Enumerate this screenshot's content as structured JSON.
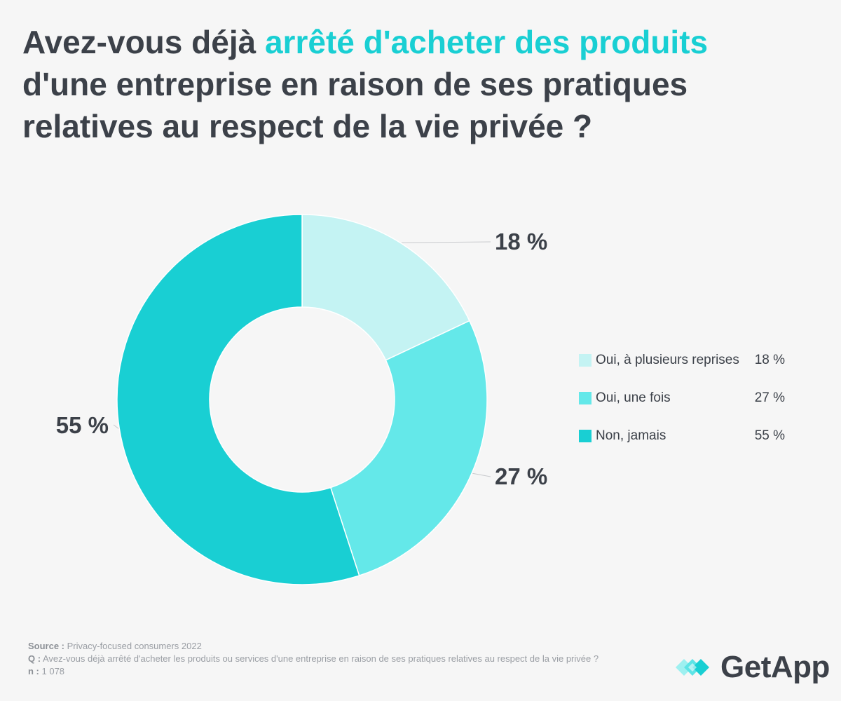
{
  "title": {
    "part1": "Avez-vous déjà ",
    "highlight": "arrêté d'acheter des produits",
    "part2": " d'une entreprise en raison de ses pratiques relatives au respect de la vie privée ?"
  },
  "colors": {
    "accent": "#19cfd3",
    "text": "#3c4149",
    "background": "#f6f6f6"
  },
  "chart_data": {
    "type": "pie",
    "variant": "donut",
    "categories": [
      "Oui, à plusieurs reprises",
      "Oui, une fois",
      "Non, jamais"
    ],
    "values": [
      18,
      27,
      55
    ],
    "unit": "%",
    "data_labels": [
      "18 %",
      "27 %",
      "55 %"
    ],
    "colors": [
      "#c4f3f3",
      "#64e8e9",
      "#19cfd3"
    ],
    "legend_position": "right"
  },
  "legend": [
    {
      "label": "Oui, à plusieurs reprises",
      "value": "18 %",
      "color": "#c4f3f3"
    },
    {
      "label": "Oui, une fois",
      "value": "27 %",
      "color": "#64e8e9"
    },
    {
      "label": "Non, jamais",
      "value": "55 %",
      "color": "#19cfd3"
    }
  ],
  "footer": {
    "source_label": "Source :",
    "source_text": " Privacy-focused consumers 2022",
    "q_label": "Q :",
    "q_text": " Avez-vous déjà arrêté d'acheter les produits ou services d'une entreprise en raison de ses pratiques relatives au respect de la vie privée ?",
    "n_label": "n :",
    "n_text": " 1 078"
  },
  "logo": {
    "text": "GetApp",
    "icon": "getapp-chevrons-icon"
  }
}
